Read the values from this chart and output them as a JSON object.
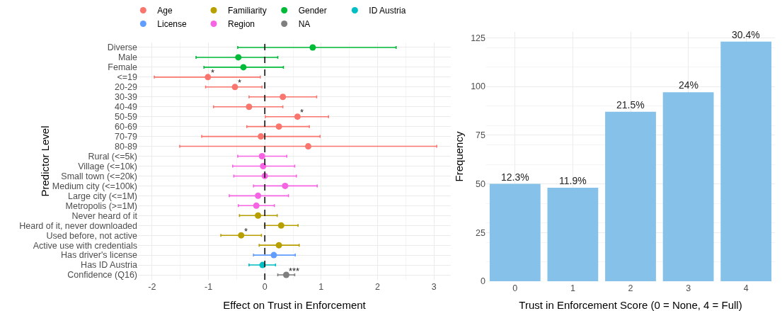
{
  "chart_data": [
    {
      "type": "scatter",
      "orientation": "horizontal",
      "xlabel": "Effect on Trust in Enforcement",
      "ylabel": "Predictor Level",
      "categories": [
        "Diverse",
        "Male",
        "Female",
        "<=19",
        "20-29",
        "30-39",
        "40-49",
        "50-59",
        "60-69",
        "70-79",
        "80-89",
        "Rural (<=5k)",
        "Village (<=10k)",
        "Small town (<=20k)",
        "Medium city (<=100k)",
        "Large city (<=1M)",
        "Metropolis (>=1M)",
        "Never heard of it",
        "Heard of it, never downloaded",
        "Used before, not active",
        "Active use with credentials",
        "Has driver's license",
        "Has ID Austria",
        "Confidence (Q16)"
      ],
      "series": [
        {
          "name": "Age",
          "color": "#f8766d",
          "values": [
            null,
            null,
            null,
            -1.01,
            -0.53,
            0.32,
            -0.28,
            0.58,
            0.25,
            -0.07,
            0.77,
            null,
            null,
            null,
            null,
            null,
            null,
            null,
            null,
            null,
            null,
            null,
            null,
            null
          ],
          "errors": [
            null,
            null,
            null,
            [
              -1.96,
              -0.08
            ],
            [
              -1.05,
              -0.05
            ],
            [
              -0.28,
              0.92
            ],
            [
              -0.91,
              0.32
            ],
            [
              0.01,
              1.13
            ],
            [
              -0.32,
              0.79
            ],
            [
              -1.12,
              0.98
            ],
            [
              -1.51,
              3.05
            ],
            null,
            null,
            null,
            null,
            null,
            null,
            null,
            null,
            null,
            null,
            null,
            null,
            null
          ]
        },
        {
          "name": "Familiarity",
          "color": "#b79f00",
          "values": [
            null,
            null,
            null,
            null,
            null,
            null,
            null,
            null,
            null,
            null,
            null,
            null,
            null,
            null,
            null,
            null,
            null,
            -0.12,
            0.29,
            -0.42,
            0.25,
            null,
            null,
            null
          ],
          "errors": [
            null,
            null,
            null,
            null,
            null,
            null,
            null,
            null,
            null,
            null,
            null,
            null,
            null,
            null,
            null,
            null,
            null,
            [
              -0.45,
              0.22
            ],
            [
              0,
              0.59
            ],
            [
              -0.78,
              -0.06
            ],
            [
              -0.1,
              0.61
            ],
            null,
            null,
            null
          ]
        },
        {
          "name": "Gender",
          "color": "#00ba38",
          "values": [
            0.85,
            -0.47,
            -0.38,
            null,
            null,
            null,
            null,
            null,
            null,
            null,
            null,
            null,
            null,
            null,
            null,
            null,
            null,
            null,
            null,
            null,
            null,
            null,
            null,
            null
          ],
          "errors": [
            [
              -0.48,
              2.33
            ],
            [
              -1.22,
              0.23
            ],
            [
              -1.08,
              0.33
            ],
            null,
            null,
            null,
            null,
            null,
            null,
            null,
            null,
            null,
            null,
            null,
            null,
            null,
            null,
            null,
            null,
            null,
            null,
            null,
            null,
            null
          ]
        },
        {
          "name": "ID Austria",
          "color": "#00bfc4",
          "values": [
            null,
            null,
            null,
            null,
            null,
            null,
            null,
            null,
            null,
            null,
            null,
            null,
            null,
            null,
            null,
            null,
            null,
            null,
            null,
            null,
            null,
            null,
            -0.04,
            null
          ],
          "errors": [
            null,
            null,
            null,
            null,
            null,
            null,
            null,
            null,
            null,
            null,
            null,
            null,
            null,
            null,
            null,
            null,
            null,
            null,
            null,
            null,
            null,
            null,
            [
              -0.28,
              0.19
            ],
            null
          ]
        },
        {
          "name": "License",
          "color": "#619cff",
          "values": [
            null,
            null,
            null,
            null,
            null,
            null,
            null,
            null,
            null,
            null,
            null,
            null,
            null,
            null,
            null,
            null,
            null,
            null,
            null,
            null,
            null,
            0.16,
            null,
            null
          ],
          "errors": [
            null,
            null,
            null,
            null,
            null,
            null,
            null,
            null,
            null,
            null,
            null,
            null,
            null,
            null,
            null,
            null,
            null,
            null,
            null,
            null,
            null,
            [
              -0.2,
              0.54
            ],
            null,
            null
          ]
        },
        {
          "name": "Region",
          "color": "#f564e3",
          "values": [
            null,
            null,
            null,
            null,
            null,
            null,
            null,
            null,
            null,
            null,
            null,
            -0.05,
            -0.03,
            0,
            0.36,
            -0.12,
            -0.15,
            null,
            null,
            null,
            null,
            null,
            null,
            null
          ],
          "errors": [
            null,
            null,
            null,
            null,
            null,
            null,
            null,
            null,
            null,
            null,
            null,
            [
              -0.48,
              0.39
            ],
            [
              -0.57,
              0.53
            ],
            [
              -0.55,
              0.56
            ],
            [
              -0.2,
              0.93
            ],
            [
              -0.63,
              0.42
            ],
            [
              -0.47,
              0.17
            ],
            null,
            null,
            null,
            null,
            null,
            null,
            null
          ]
        },
        {
          "name": "NA",
          "color": "#7f7f7f",
          "values": [
            null,
            null,
            null,
            null,
            null,
            null,
            null,
            null,
            null,
            null,
            null,
            null,
            null,
            null,
            null,
            null,
            null,
            null,
            null,
            null,
            null,
            null,
            null,
            0.38
          ],
          "errors": [
            null,
            null,
            null,
            null,
            null,
            null,
            null,
            null,
            null,
            null,
            null,
            null,
            null,
            null,
            null,
            null,
            null,
            null,
            null,
            null,
            null,
            null,
            null,
            [
              0.23,
              0.53
            ]
          ]
        }
      ],
      "xlim": [
        -2.25,
        3.3
      ],
      "xticks": [
        -2,
        -1,
        0,
        1,
        2,
        3
      ],
      "grid": true,
      "legend": "top",
      "marker": "circle",
      "ref_lines": [
        {
          "axis": "x",
          "value": 0,
          "line_style": "dashed",
          "color": "#000000"
        }
      ],
      "annotations": [
        {
          "text": "*",
          "x": -1.01,
          "y": "<=19"
        },
        {
          "text": "*",
          "x": -0.53,
          "y": "20-29"
        },
        {
          "text": "*",
          "x": 0.58,
          "y": "50-59"
        },
        {
          "text": "*",
          "x": -0.42,
          "y": "Used before, not active"
        },
        {
          "text": "***",
          "x": 0.38,
          "y": "Confidence (Q16)"
        }
      ]
    },
    {
      "type": "bar",
      "xlabel": "Trust in Enforcement Score (0 = None, 4 = Full)",
      "ylabel": "Frequency",
      "categories": [
        "0",
        "1",
        "2",
        "3",
        "4"
      ],
      "values": [
        50,
        48,
        87,
        97,
        123
      ],
      "color": "#85c1e9",
      "annotations": [
        {
          "text": "12.3%",
          "x": "0",
          "y": 50
        },
        {
          "text": "11.9%",
          "x": "1",
          "y": 48
        },
        {
          "text": "21.5%",
          "x": "2",
          "y": 87
        },
        {
          "text": "24%",
          "x": "3",
          "y": 97
        },
        {
          "text": "30.4%",
          "x": "4",
          "y": 123
        }
      ],
      "ylim": [
        0,
        128
      ],
      "yticks": [
        0,
        25,
        50,
        75,
        100,
        125
      ],
      "grid": true
    }
  ]
}
